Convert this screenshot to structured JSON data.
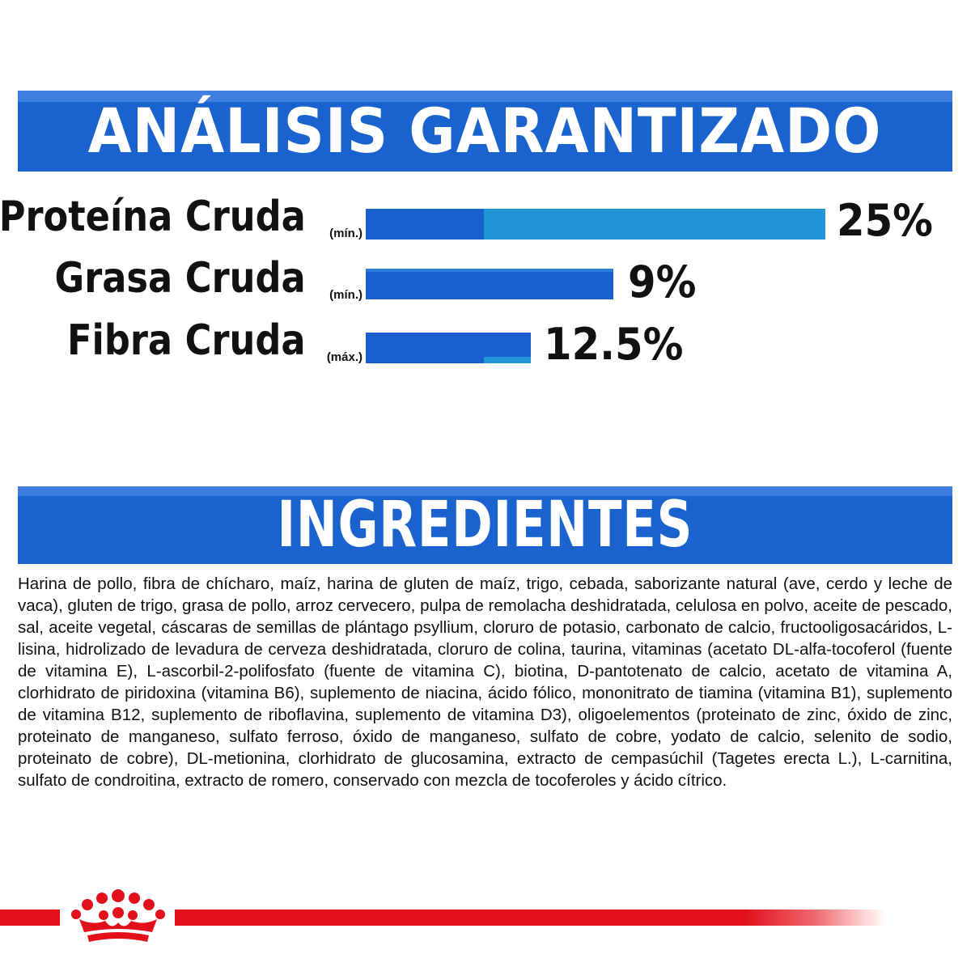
{
  "analysis": {
    "title": "ANÁLISIS GARANTIZADO",
    "rows": [
      {
        "label": "Proteína Cruda",
        "qualifier": "(mín.)",
        "value": "25%",
        "percent": 25
      },
      {
        "label": "Grasa Cruda",
        "qualifier": "(mín.)",
        "value": "9%",
        "percent": 9
      },
      {
        "label": "Fibra Cruda",
        "qualifier": "(máx.)",
        "value": "12.5%",
        "percent": 12.5
      }
    ]
  },
  "ingredients": {
    "title": "INGREDIENTES",
    "text": "Harina de pollo, fibra de chícharo, maíz, harina de gluten de maíz, trigo, cebada, saborizante natural (ave, cerdo y leche de vaca), gluten de trigo, grasa de pollo, arroz cervecero, pulpa de remolacha deshidratada, celulosa en polvo, aceite de pescado, sal, aceite vegetal, cáscaras de semillas de plántago psyllium, cloruro de potasio, carbonato de calcio, fructooligosacáridos, L-lisina, hidrolizado de levadura de cerveza deshidratada, cloruro de colina, taurina, vitaminas (acetato DL-alfa-tocoferol (fuente de vitamina E), L-ascorbil-2-polifosfato (fuente de vitamina C), biotina, D-pantotenato de calcio, acetato de vitamina A, clorhidrato de piridoxina (vitamina B6), suplemento de niacina, ácido fólico, mononitrato de tiamina (vitamina B1), suplemento de vitamina B12, suplemento de riboflavina, suplemento de vitamina D3), oligoelementos (proteinato de zinc, óxido de zinc, proteinato de manganeso, sulfato ferroso, óxido de manganeso, sulfato de cobre, yodato de calcio, selenito de sodio, proteinato de cobre), DL-metionina, clorhidrato de glucosamina, extracto de cempasúchil (Tagetes erecta L.), L-carnitina, sulfato de condroitina, extracto de romero, conservado con mezcla de tocoferoles y ácido cítrico."
  },
  "colors": {
    "banner": "#1a63cf",
    "bar_dark": "#1a5fd0",
    "bar_light": "#2196d6",
    "brand_red": "#e30f1b"
  },
  "icons": {
    "brand_logo": "crown-icon"
  }
}
